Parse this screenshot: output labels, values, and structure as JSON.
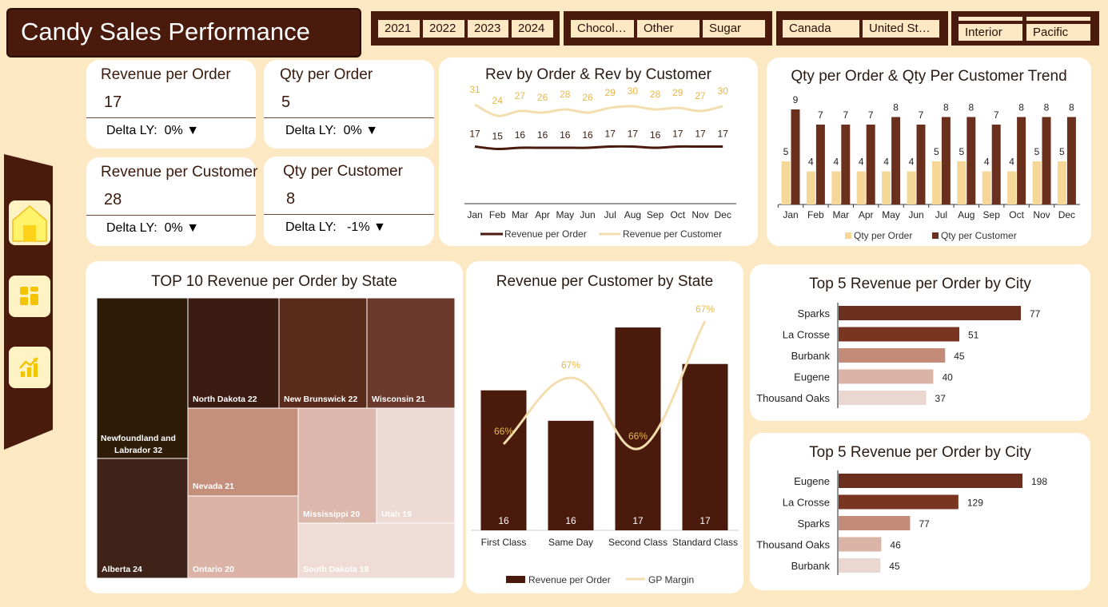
{
  "header": {
    "title": "Candy Sales Performance"
  },
  "filters": {
    "years": [
      "2021",
      "2022",
      "2023",
      "2024"
    ],
    "categories": [
      "Chocol…",
      "Other",
      "Sugar"
    ],
    "countries": [
      "Canada",
      "United St…"
    ],
    "regions": [
      "Interior",
      "Pacific"
    ]
  },
  "kpis": [
    {
      "label": "Revenue per Order",
      "value": "17",
      "delta_label": "Delta LY:",
      "delta_value": "0% ▼"
    },
    {
      "label": "Qty per Order",
      "value": "5",
      "delta_label": "Delta LY:",
      "delta_value": "0% ▼"
    },
    {
      "label": "Revenue per Customer",
      "value": "28",
      "delta_label": "Delta LY:",
      "delta_value": "0% ▼"
    },
    {
      "label": "Qty per Customer",
      "value": "8",
      "delta_label": "Delta LY:",
      "delta_value": "-1% ▼"
    }
  ],
  "colors": {
    "dark": "#4a1a0c",
    "brown": "#6b2f1e",
    "cream": "#f5d898",
    "line_cream": "#f3deb0",
    "label_gold": "#e8b84a"
  },
  "chart_data": [
    {
      "id": "rev_trend",
      "type": "line",
      "title": "Rev by Order & Rev by Customer",
      "categories": [
        "Jan",
        "Feb",
        "Mar",
        "Apr",
        "May",
        "Jun",
        "Jul",
        "Aug",
        "Sep",
        "Oct",
        "Nov",
        "Dec"
      ],
      "series": [
        {
          "name": "Revenue per Order",
          "values": [
            17,
            15,
            16,
            16,
            16,
            16,
            17,
            17,
            16,
            17,
            17,
            17
          ]
        },
        {
          "name": "Revenue per Customer",
          "values": [
            31,
            24,
            27,
            26,
            28,
            26,
            29,
            30,
            28,
            29,
            27,
            30
          ]
        }
      ]
    },
    {
      "id": "qty_trend",
      "type": "bar",
      "title": "Qty per Order & Qty Per Customer Trend",
      "categories": [
        "Jan",
        "Feb",
        "Mar",
        "Apr",
        "May",
        "Jun",
        "Jul",
        "Aug",
        "Sep",
        "Oct",
        "Nov",
        "Dec"
      ],
      "series": [
        {
          "name": "Qty per Order",
          "values": [
            5,
            4,
            4,
            4,
            4,
            4,
            5,
            5,
            4,
            4,
            5,
            5
          ]
        },
        {
          "name": "Qty per Customer",
          "values": [
            9,
            7,
            7,
            7,
            8,
            7,
            8,
            8,
            7,
            8,
            8,
            8
          ]
        }
      ]
    },
    {
      "id": "treemap",
      "type": "treemap",
      "title": "TOP 10 Revenue per Order by State",
      "items": [
        {
          "label": "Newfoundland and Labrador",
          "value": 32
        },
        {
          "label": "Alberta",
          "value": 24
        },
        {
          "label": "North Dakota",
          "value": 22
        },
        {
          "label": "New Brunswick",
          "value": 22
        },
        {
          "label": "Wisconsin",
          "value": 21
        },
        {
          "label": "Nevada",
          "value": 21
        },
        {
          "label": "Ontario",
          "value": 20
        },
        {
          "label": "Mississippi",
          "value": 20
        },
        {
          "label": "Utah",
          "value": 19
        },
        {
          "label": "South Dakota",
          "value": 19
        }
      ]
    },
    {
      "id": "ship_combo",
      "type": "bar",
      "title": "Revenue per Customer by State",
      "categories": [
        "First Class",
        "Same Day",
        "Second Class",
        "Standard Class"
      ],
      "series": [
        {
          "name": "Revenue per Order",
          "values": [
            16,
            16,
            17,
            17
          ]
        },
        {
          "name": "GP Margin",
          "values": [
            66,
            67,
            66,
            67
          ],
          "value_labels": [
            "66%",
            "67%",
            "66%",
            "67%"
          ]
        }
      ],
      "bar_heights_relative": [
        0.69,
        0.54,
        1.0,
        0.82
      ]
    },
    {
      "id": "city_top5_a",
      "type": "bar",
      "title": "Top 5 Revenue per Order by City",
      "categories": [
        "Sparks",
        "La Crosse",
        "Burbank",
        "Eugene",
        "Thousand Oaks"
      ],
      "values": [
        77,
        51,
        45,
        40,
        37
      ]
    },
    {
      "id": "city_top5_b",
      "type": "bar",
      "title": "Top 5 Revenue per Order by City",
      "categories": [
        "Eugene",
        "La Crosse",
        "Sparks",
        "Thousand Oaks",
        "Burbank"
      ],
      "values": [
        198,
        129,
        77,
        46,
        45
      ]
    }
  ]
}
